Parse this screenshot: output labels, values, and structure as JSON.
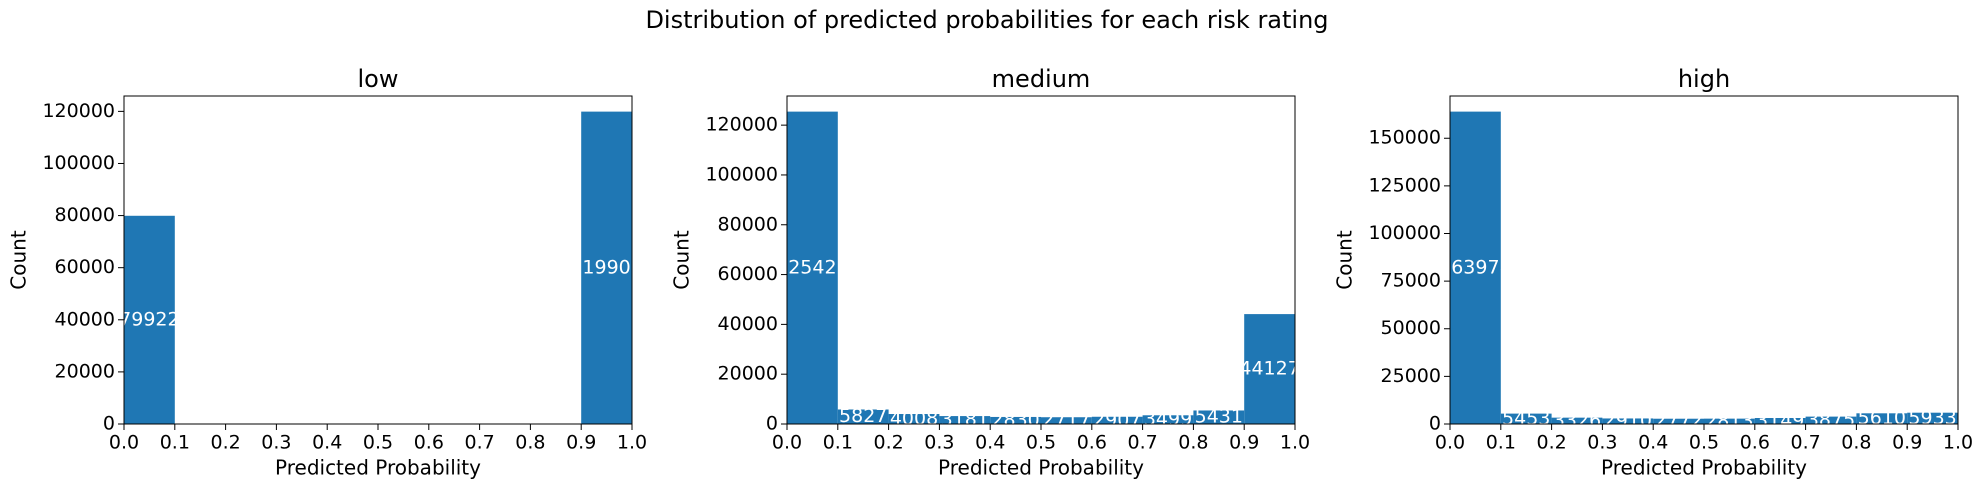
{
  "title": "Distribution of predicted probabilities for each risk rating",
  "chart_data": [
    {
      "type": "histogram",
      "title": "low",
      "xlabel": "Predicted Probability",
      "ylabel": "Count",
      "bins": [
        0,
        0.1,
        0.2,
        0.3,
        0.4,
        0.5,
        0.6,
        0.7,
        0.8,
        0.9,
        1
      ],
      "values": [
        79922,
        170,
        118,
        99,
        92,
        95,
        101,
        115,
        150,
        119905
      ],
      "color": "#1f77b4",
      "xlim": [
        0,
        1
      ],
      "ylim": [
        0,
        125900
      ],
      "xticks": [
        {
          "value": 0,
          "label": "0.0"
        },
        0.1,
        0.2,
        0.3,
        0.4,
        0.5,
        0.6,
        0.7,
        0.8,
        0.9,
        {
          "value": 1,
          "label": "1.0"
        }
      ],
      "yticks": [
        0,
        20000,
        40000,
        60000,
        80000,
        100000,
        120000
      ]
    },
    {
      "type": "histogram",
      "title": "medium",
      "xlabel": "Predicted Probability",
      "ylabel": "Count",
      "bins": [
        0,
        0.1,
        0.2,
        0.3,
        0.4,
        0.5,
        0.6,
        0.7,
        0.8,
        0.9,
        1
      ],
      "values": [
        125427,
        5827,
        4008,
        3181,
        2830,
        2717,
        2907,
        3499,
        5431,
        44127
      ],
      "color": "#1f77b4",
      "xlim": [
        0,
        1
      ],
      "ylim": [
        0,
        131700
      ],
      "xticks": [
        {
          "value": 0,
          "label": "0.0"
        },
        0.1,
        0.2,
        0.3,
        0.4,
        0.5,
        0.6,
        0.7,
        0.8,
        0.9,
        {
          "value": 1,
          "label": "1.0"
        }
      ],
      "yticks": [
        0,
        20000,
        40000,
        60000,
        80000,
        100000,
        120000
      ]
    },
    {
      "type": "histogram",
      "title": "high",
      "xlabel": "Predicted Probability",
      "ylabel": "Count",
      "bins": [
        0,
        0.1,
        0.2,
        0.3,
        0.4,
        0.5,
        0.6,
        0.7,
        0.8,
        0.9,
        1
      ],
      "values": [
        163978,
        5453,
        3326,
        2910,
        2772,
        2813,
        3149,
        3875,
        5610,
        5933
      ],
      "color": "#1f77b4",
      "xlim": [
        0,
        1
      ],
      "ylim": [
        0,
        172177
      ],
      "xticks": [
        {
          "value": 0,
          "label": "0.0"
        },
        0.1,
        0.2,
        0.3,
        0.4,
        0.5,
        0.6,
        0.7,
        0.8,
        0.9,
        {
          "value": 1,
          "label": "1.0"
        }
      ],
      "yticks": [
        0,
        25000,
        50000,
        75000,
        100000,
        125000,
        150000
      ]
    }
  ]
}
